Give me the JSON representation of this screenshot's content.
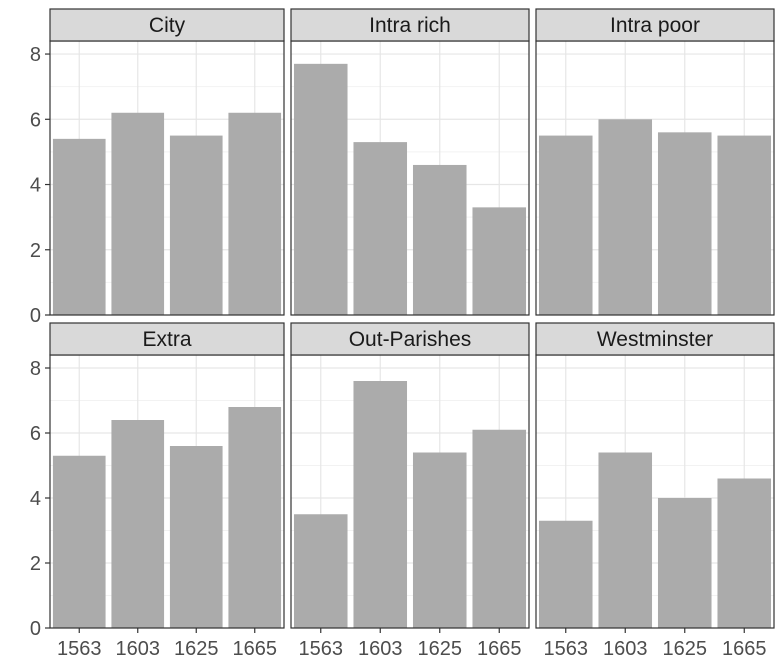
{
  "chart_data": {
    "type": "bar",
    "facet_layout": "2 rows x 3 columns",
    "categories": [
      "1563",
      "1603",
      "1625",
      "1665"
    ],
    "ylim": [
      0,
      8.4
    ],
    "yticks": [
      "0",
      "2",
      "4",
      "6",
      "8"
    ],
    "ytick_values": [
      0,
      2,
      4,
      6,
      8
    ],
    "grid": true,
    "bar_color": "#ababab",
    "panel_border_color": "#333333",
    "strip_fill": "#d9d9d9",
    "panels": [
      {
        "title": "City",
        "values": [
          5.4,
          6.2,
          5.5,
          6.2
        ]
      },
      {
        "title": "Intra rich",
        "values": [
          7.7,
          5.3,
          4.6,
          3.3
        ]
      },
      {
        "title": "Intra poor",
        "values": [
          5.5,
          6.0,
          5.6,
          5.5
        ]
      },
      {
        "title": "Extra",
        "values": [
          5.3,
          6.4,
          5.6,
          6.8
        ]
      },
      {
        "title": "Out-Parishes",
        "values": [
          3.5,
          7.6,
          5.4,
          6.1
        ]
      },
      {
        "title": "Westminster",
        "values": [
          3.3,
          5.4,
          4.0,
          4.6
        ]
      }
    ]
  }
}
